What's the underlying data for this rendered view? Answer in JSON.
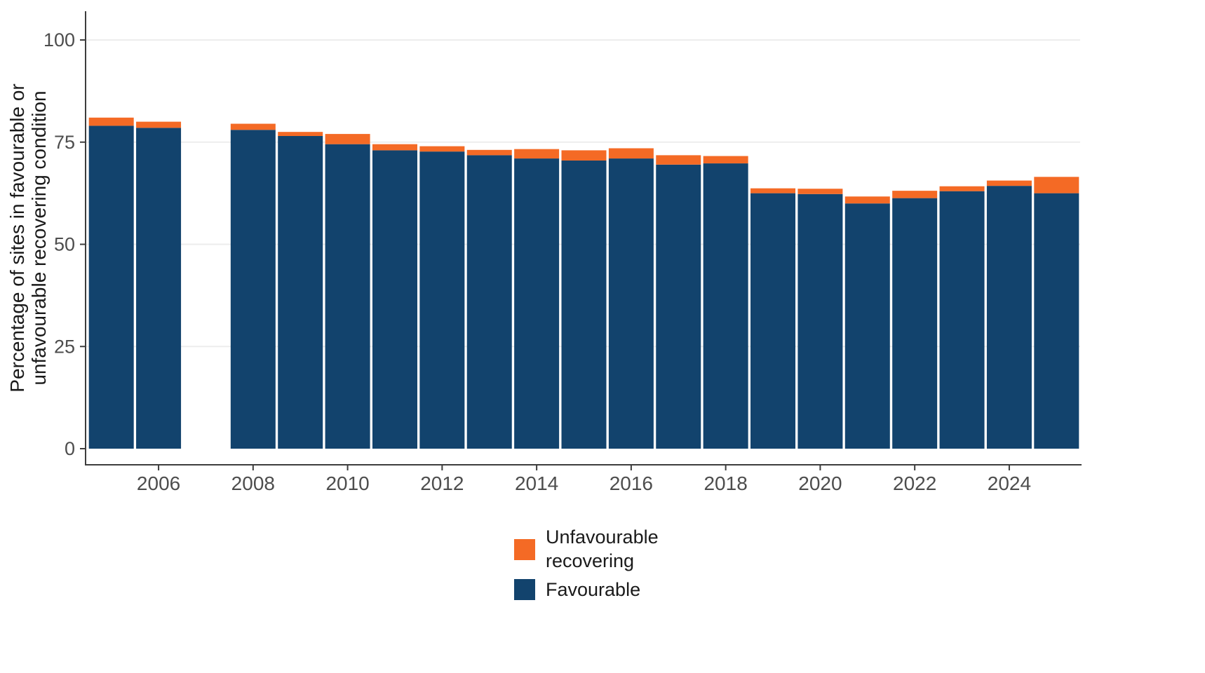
{
  "chart_data": {
    "type": "bar",
    "stacked": true,
    "title": "",
    "xlabel": "",
    "ylabel": "Percentage of sites in favourable or unfavourable recovering condition",
    "ylabel_lines": [
      "Percentage of sites in favourable or",
      "unfavourable recovering condition"
    ],
    "ylim": [
      0,
      100
    ],
    "yticks": [
      0,
      25,
      50,
      75,
      100
    ],
    "xticks": [
      2006,
      2008,
      2010,
      2012,
      2014,
      2016,
      2018,
      2020,
      2022,
      2024
    ],
    "years": [
      2005,
      2006,
      2008,
      2009,
      2010,
      2011,
      2012,
      2013,
      2014,
      2015,
      2016,
      2017,
      2018,
      2019,
      2020,
      2021,
      2022,
      2023,
      2024,
      2025
    ],
    "missing_years": [
      2007
    ],
    "series": [
      {
        "name": "Favourable",
        "color": "#12436D",
        "values": [
          79,
          78.5,
          78,
          76.5,
          74.5,
          73,
          72.7,
          71.8,
          71,
          70.5,
          71,
          69.5,
          69.8,
          62.5,
          62.3,
          60,
          61.3,
          63,
          64.3,
          62.5
        ]
      },
      {
        "name": "Unfavourable recovering",
        "color": "#F46A25",
        "values": [
          2,
          1.5,
          1.5,
          1,
          2.5,
          1.5,
          1.3,
          1.3,
          2.3,
          2.5,
          2.5,
          2.3,
          1.8,
          1.2,
          1.3,
          1.7,
          1.8,
          1.2,
          1.3,
          4
        ]
      }
    ],
    "legend": [
      {
        "label": "Unfavourable recovering",
        "color": "#F46A25"
      },
      {
        "label": "Favourable",
        "color": "#12436D"
      }
    ],
    "legend_position": "bottom-center",
    "grid": "horizontal-light"
  },
  "colors": {
    "background": "#ffffff",
    "axis": "#3d3d3d",
    "tick_label": "#4d4d4d",
    "axis_title": "#1a1a1a",
    "gridline": "#ededed"
  }
}
